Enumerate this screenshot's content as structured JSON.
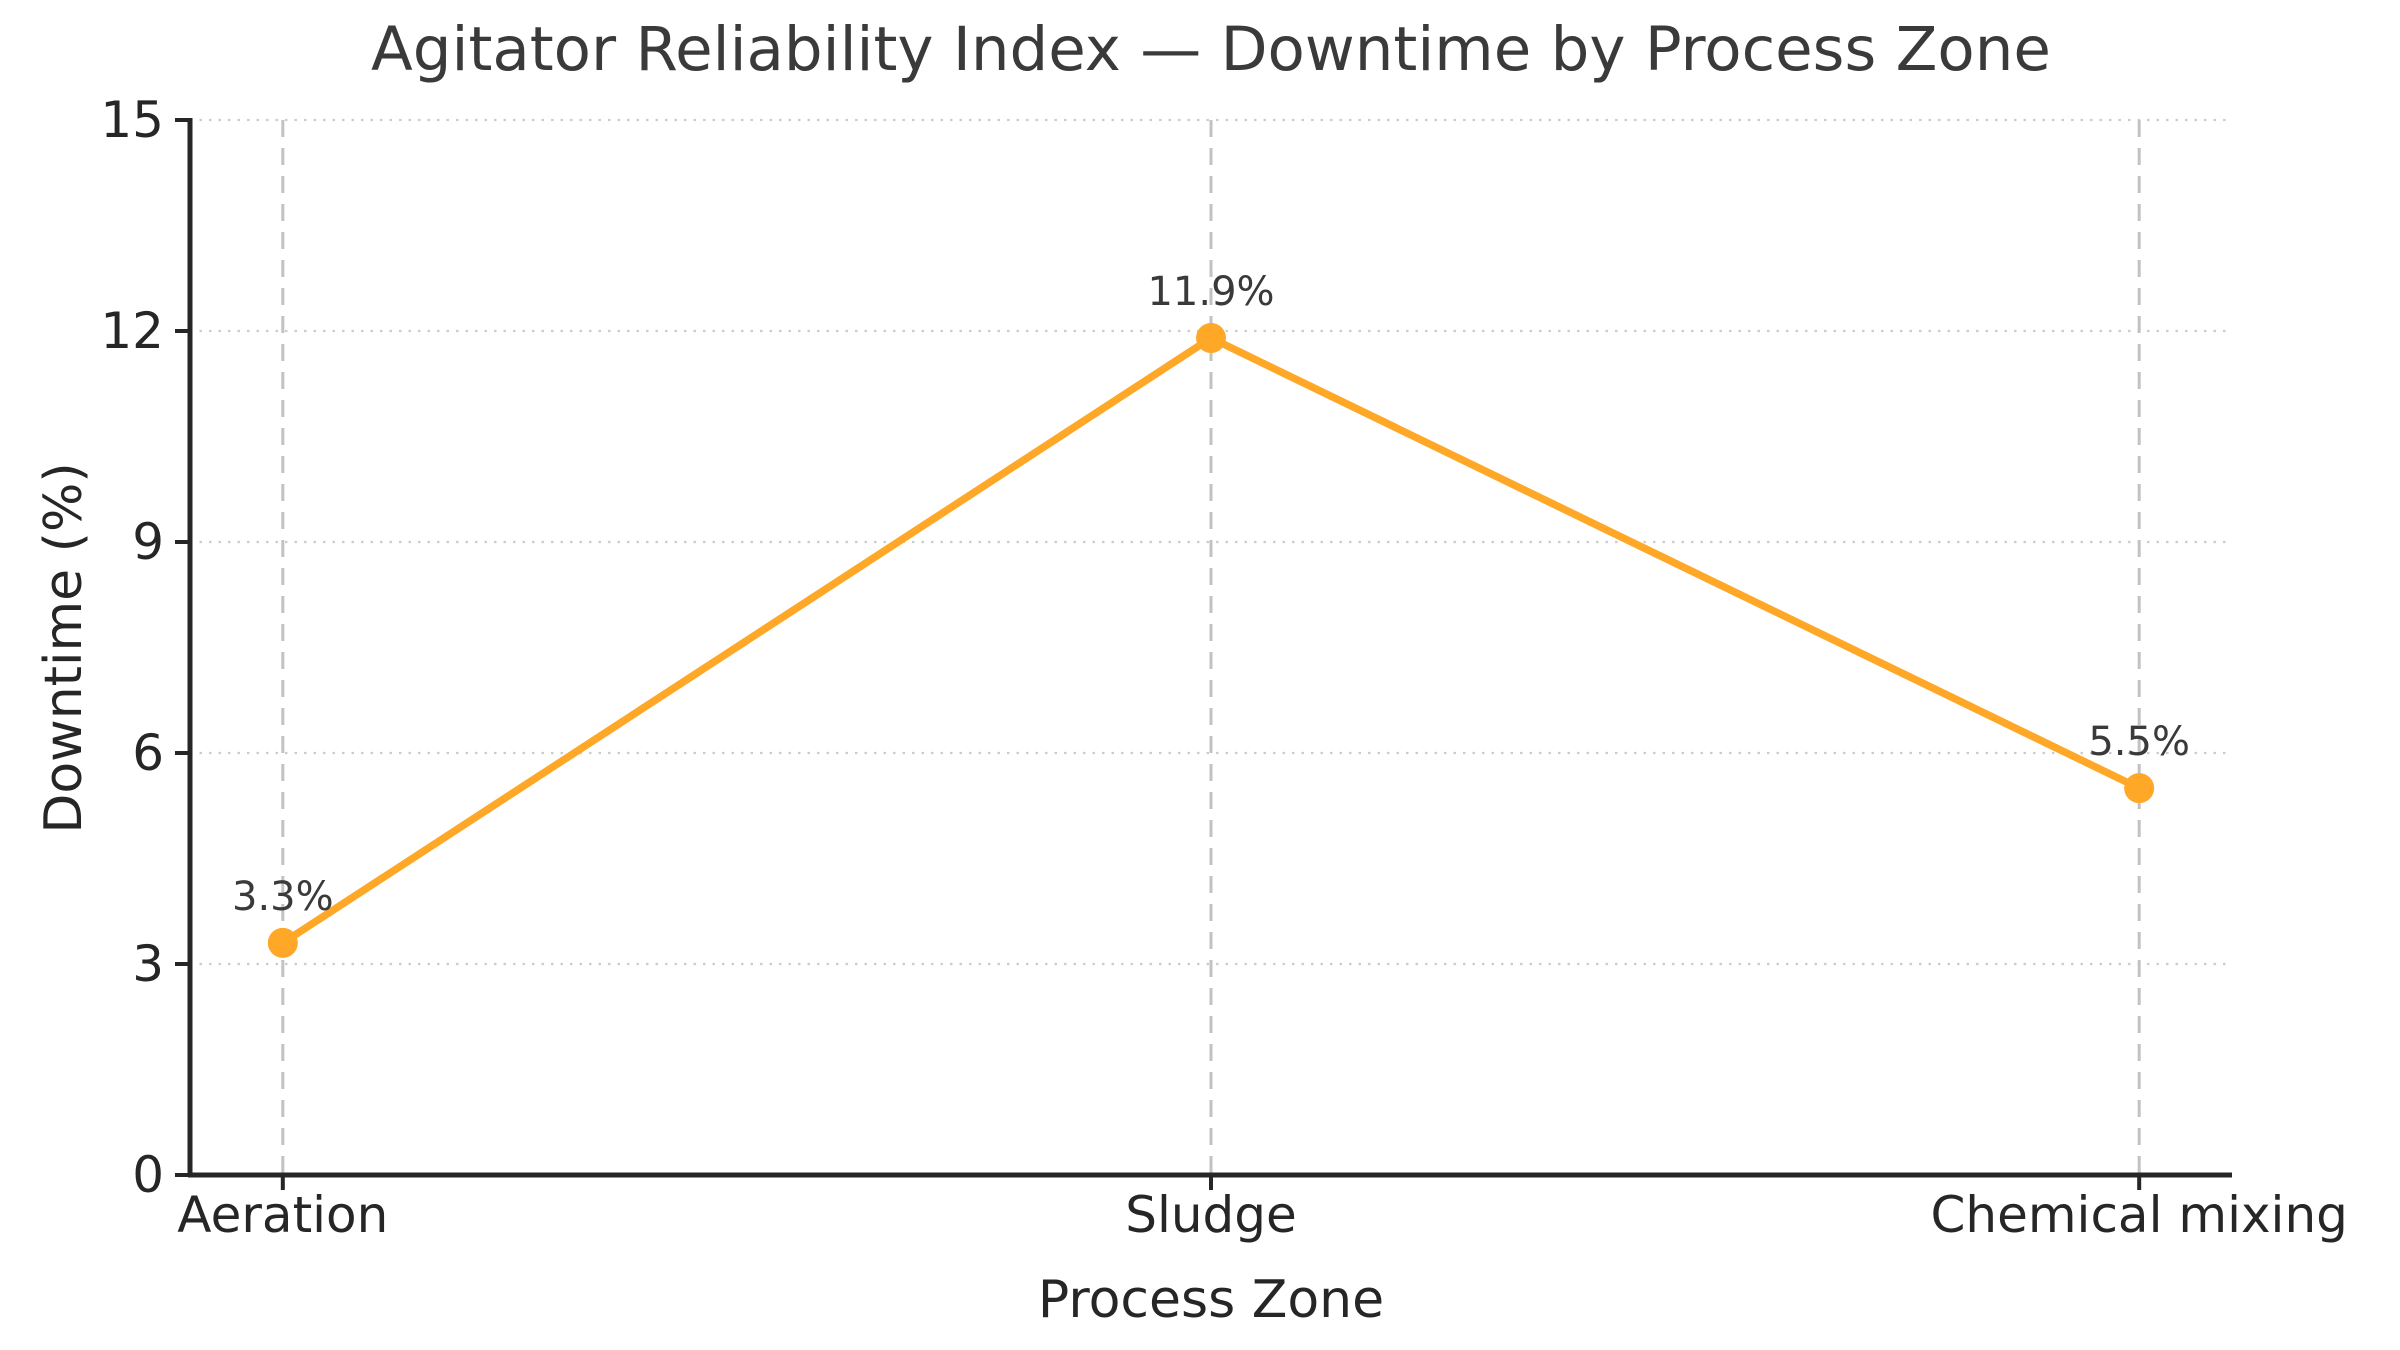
{
  "chart_data": {
    "type": "line",
    "title": "Agitator Reliability Index — Downtime by Process Zone",
    "xlabel": "Process Zone",
    "ylabel": "Downtime (%)",
    "categories": [
      "Aeration",
      "Sludge",
      "Chemical mixing"
    ],
    "series": [
      {
        "name": "Downtime",
        "values": [
          3.3,
          11.9,
          5.5
        ]
      }
    ],
    "point_labels": [
      "3.3%",
      "11.9%",
      "5.5%"
    ],
    "ylim": [
      0,
      15
    ],
    "yticks": [
      0,
      3,
      6,
      9,
      12,
      15
    ],
    "ytick_labels": [
      "0",
      "3",
      "6",
      "9",
      "12",
      "15"
    ],
    "legend": "none",
    "grid": {
      "horizontal": "dotted",
      "vertical": "dashed"
    },
    "colors": {
      "line": "#FFA726",
      "marker": "#FFA726",
      "grid_h": "#cccccc",
      "grid_v": "#c2c2c2",
      "spine": "#262626",
      "tick_text": "#262626",
      "title": "#3a3a3a",
      "value_label": "#3a3a3a",
      "background": "#ffffff"
    }
  }
}
